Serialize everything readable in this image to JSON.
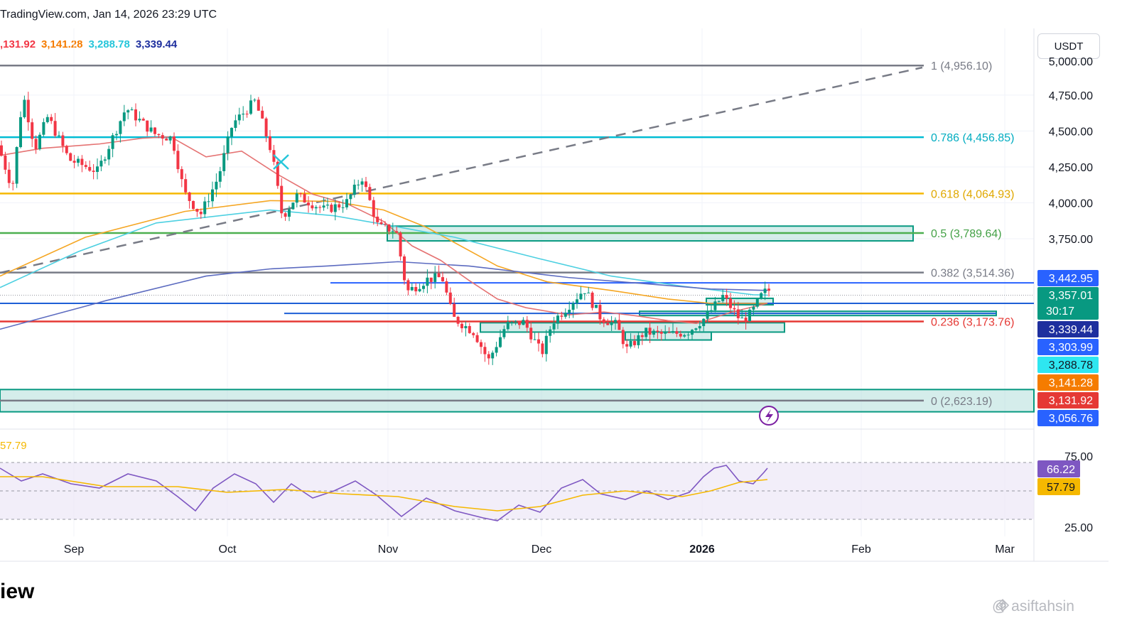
{
  "header": {
    "source": "TradingView.com, Jan 14, 2026 23:29 UTC"
  },
  "moving_averages": [
    {
      "label": ",131.92",
      "color": "#f23645"
    },
    {
      "label": "3,141.28",
      "color": "#f57c00"
    },
    {
      "label": "3,288.78",
      "color": "#4dd0e1"
    },
    {
      "label": "3,339.44",
      "color": "#1e2f9e"
    }
  ],
  "currency": "USDT",
  "price_axis": {
    "ticks": [
      "4,750.00",
      "4,500.00",
      "4,250.00",
      "4,000.00",
      "3,750.00"
    ],
    "tick_values": [
      4750,
      4500,
      4250,
      4000,
      3750
    ],
    "badges": [
      {
        "value": 3442.95,
        "label": "3,442.95",
        "bg": "#2962ff",
        "fg": "#ffffff"
      },
      {
        "value": 3357.01,
        "label": "3,357.01",
        "sub": "30:17",
        "bg": "#089981",
        "fg": "#ffffff"
      },
      {
        "value": 3339.44,
        "label": "3,339.44",
        "bg": "#1e2f9e",
        "fg": "#ffffff"
      },
      {
        "value": 3303.99,
        "label": "3,303.99",
        "bg": "#2962ff",
        "fg": "#ffffff"
      },
      {
        "value": 3288.78,
        "label": "3,288.78",
        "bg": "#2ee6f0",
        "fg": "#131722"
      },
      {
        "value": 3141.28,
        "label": "3,141.28",
        "bg": "#f57c00",
        "fg": "#ffffff"
      },
      {
        "value": 3131.92,
        "label": "3,131.92",
        "bg": "#e53935",
        "fg": "#ffffff"
      },
      {
        "value": 3056.76,
        "label": "3,056.76",
        "bg": "#2962ff",
        "fg": "#ffffff"
      }
    ]
  },
  "fib_levels": [
    {
      "ratio": "1",
      "value": 4956.1,
      "label": "1 (4,956.10)",
      "color": "#787b86",
      "text_color": "#787b86"
    },
    {
      "ratio": "0.786",
      "value": 4456.85,
      "label": "0.786 (4,456.85)",
      "color": "#00bcd4",
      "text_color": "#00acc1"
    },
    {
      "ratio": "0.618",
      "value": 4064.93,
      "label": "0.618 (4,064.93)",
      "color": "#f5b800",
      "text_color": "#e0a800"
    },
    {
      "ratio": "0.5",
      "value": 3789.64,
      "label": "0.5 (3,789.64)",
      "color": "#4caf50",
      "text_color": "#43a047"
    },
    {
      "ratio": "0.382",
      "value": 3514.36,
      "label": "0.382 (3,514.36)",
      "color": "#787b86",
      "text_color": "#787b86"
    },
    {
      "ratio": "0.236",
      "value": 3173.76,
      "label": "0.236 (3,173.76)",
      "color": "#e53935",
      "text_color": "#e53935"
    },
    {
      "ratio": "0",
      "value": 2623.19,
      "label": "0 (2,623.19)",
      "color": "#787b86",
      "text_color": "#787b86"
    }
  ],
  "time_axis": {
    "labels": [
      "Sep",
      "Oct",
      "Nov",
      "Dec",
      "2026",
      "Feb",
      "Mar"
    ]
  },
  "rsi": {
    "rsi_value": "66.22",
    "ma_value": "57.79",
    "ma_header": "57.79",
    "upper_label": "75.00",
    "lower_label": "25.00",
    "upper_level": 70,
    "middle_level": 50,
    "lower_level": 30,
    "rsi_color": "#7e57c2",
    "ma_color": "#f5b800"
  },
  "footer": {
    "logo_text": "iew",
    "watermark": "@ asiftahsin"
  },
  "colors": {
    "up": "#089981",
    "down": "#f23645",
    "zone_fill": "#b2dfdb",
    "zone_border": "#089981"
  }
}
